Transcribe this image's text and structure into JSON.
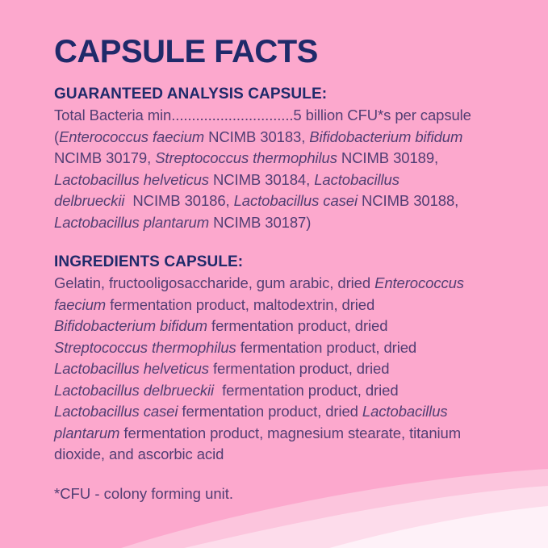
{
  "colors": {
    "background": "#FCA8CD",
    "heading_text": "#1F2A6A",
    "body_text": "#523E74",
    "wave_1": "#FCC5DD",
    "wave_2": "#FDDCEB",
    "wave_3": "#FEF1F8"
  },
  "label": {
    "title": "CAPSULE FACTS",
    "sections": [
      {
        "heading": "GUARANTEED ANALYSIS CAPSULE:",
        "lines": [
          [
            {
              "text": "Total Bacteria min..............................5 billion CFU*s per capsule"
            }
          ],
          [
            {
              "text": "("
            },
            {
              "text": "Enterococcus faecium",
              "italic": true
            },
            {
              "text": " NCIMB 30183, "
            },
            {
              "text": "Bifidobacterium bifidum",
              "italic": true
            }
          ],
          [
            {
              "text": "NCIMB 30179, "
            },
            {
              "text": "Streptococcus thermophilus",
              "italic": true
            },
            {
              "text": " NCIMB 30189,"
            }
          ],
          [
            {
              "text": "Lactobacillus helveticus",
              "italic": true
            },
            {
              "text": " NCIMB 30184, "
            },
            {
              "text": "Lactobacillus",
              "italic": true
            }
          ],
          [
            {
              "text": "delbrueckii",
              "italic": true
            },
            {
              "text": "  NCIMB 30186, "
            },
            {
              "text": "Lactobacillus casei",
              "italic": true
            },
            {
              "text": " NCIMB 30188,"
            }
          ],
          [
            {
              "text": "Lactobacillus plantarum",
              "italic": true
            },
            {
              "text": " NCIMB 30187)"
            }
          ]
        ]
      },
      {
        "heading": "INGREDIENTS CAPSULE:",
        "lines": [
          [
            {
              "text": "Gelatin, fructooligosaccharide, gum arabic, dried "
            },
            {
              "text": "Enterococcus",
              "italic": true
            }
          ],
          [
            {
              "text": "faecium",
              "italic": true
            },
            {
              "text": " fermentation product, maltodextrin, dried"
            }
          ],
          [
            {
              "text": "Bifidobacterium bifidum",
              "italic": true
            },
            {
              "text": " fermentation product, dried"
            }
          ],
          [
            {
              "text": "Streptococcus thermophilus",
              "italic": true
            },
            {
              "text": " fermentation product, dried"
            }
          ],
          [
            {
              "text": "Lactobacillus helveticus",
              "italic": true
            },
            {
              "text": " fermentation product, dried"
            }
          ],
          [
            {
              "text": "Lactobacillus delbrueckii",
              "italic": true
            },
            {
              "text": "  fermentation product, dried"
            }
          ],
          [
            {
              "text": "Lactobacillus casei",
              "italic": true
            },
            {
              "text": " fermentation product, dried "
            },
            {
              "text": "Lactobacillus",
              "italic": true
            }
          ],
          [
            {
              "text": "plantarum",
              "italic": true
            },
            {
              "text": " fermentation product, magnesium stearate, titanium"
            }
          ],
          [
            {
              "text": "dioxide, and ascorbic acid"
            }
          ]
        ]
      }
    ],
    "footnote": "*CFU - colony forming unit."
  }
}
